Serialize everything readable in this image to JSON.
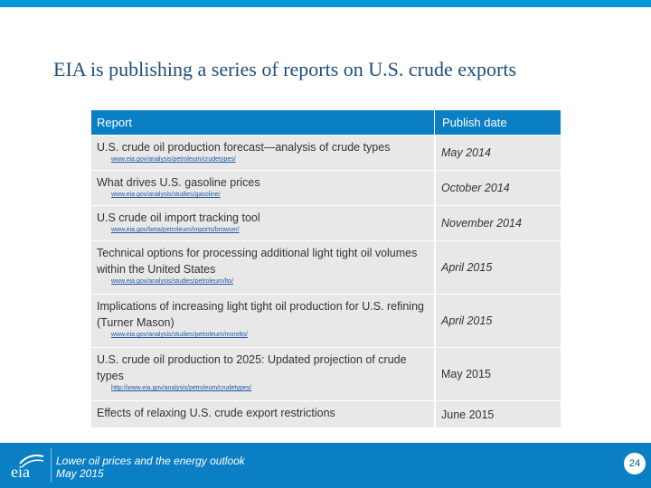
{
  "title": "EIA is publishing a series of reports on U.S. crude exports",
  "table": {
    "headers": {
      "report": "Report",
      "date": "Publish date"
    },
    "rows": [
      {
        "report": "U.S. crude oil production forecast—analysis of crude types",
        "link": "www.eia.gov/analysis/petroleum/crudetypes/",
        "date": "May 2014",
        "italic": true
      },
      {
        "report": "What drives U.S. gasoline prices",
        "link": "www.eia.gov/analysis/studies/gasoline/",
        "date": "October 2014",
        "italic": true
      },
      {
        "report": "U.S crude oil import tracking tool",
        "link": "www.eia.gov/beta/petroleum/imports/browser/",
        "date": "November 2014",
        "italic": true
      },
      {
        "report": "Technical options for processing additional light tight oil volumes within the United States",
        "link": "www.eia.gov/analysis/studies/petroleum/lto/",
        "date": "April 2015",
        "italic": true
      },
      {
        "report": "Implications of increasing light tight oil production for U.S. refining (Turner Mason)",
        "link": "www.eia.gov/analysis/studies/petroleum/morelto/",
        "date": "April 2015",
        "italic": true
      },
      {
        "report": "U.S. crude oil production to 2025: Updated projection of crude types",
        "link": "http://www.eia.gov/analysis/petroleum/crudetypes/",
        "date": "May 2015",
        "italic": false
      },
      {
        "report": "Effects of relaxing U.S. crude export restrictions",
        "link": "",
        "date": "June 2015",
        "italic": false
      }
    ]
  },
  "footer": {
    "logo_text": "eia",
    "subtitle_line1": "Lower oil prices and the energy outlook",
    "subtitle_line2": "May 2015",
    "page_number": "24"
  },
  "colors": {
    "accent": "#0b7fc3",
    "title": "#1f4e79",
    "row_bg": "#e8e8e8"
  }
}
